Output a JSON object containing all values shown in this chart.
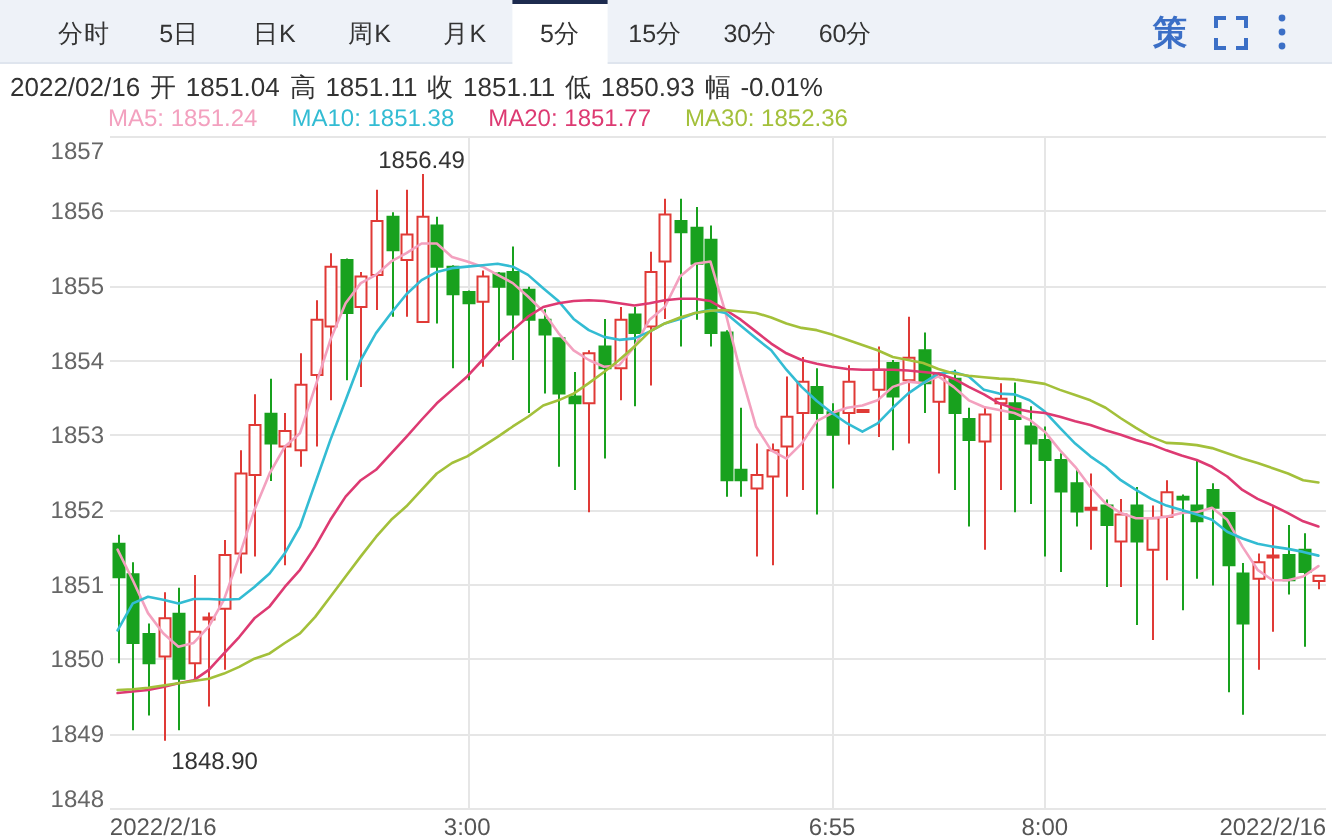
{
  "chart_data": {
    "type": "candlestick",
    "title": "2022/02/16 开 1851.04 高 1851.11 收 1851.11 低 1850.93 幅 -0.01%",
    "categories": [
      null,
      null,
      null,
      "2022/2/16",
      null,
      null,
      null,
      null,
      null,
      null,
      null,
      null,
      null,
      null,
      null,
      null,
      null,
      null,
      null,
      null,
      null,
      null,
      null,
      "3:00",
      null,
      null,
      null,
      null,
      null,
      null,
      null,
      null,
      null,
      null,
      null,
      null,
      null,
      null,
      null,
      null,
      null,
      null,
      null,
      null,
      null,
      null,
      null,
      "6:55",
      null,
      null,
      null,
      null,
      null,
      null,
      null,
      null,
      null,
      null,
      null,
      null,
      null,
      "8:00",
      null,
      null,
      null,
      null,
      null,
      null,
      null,
      null,
      null,
      null,
      null,
      null,
      null,
      null,
      "2022/2/16",
      null,
      null,
      null
    ],
    "ohlc": [
      [
        1851.54,
        1851.66,
        1849.94,
        1851.09
      ],
      [
        1851.13,
        1851.29,
        1849.04,
        1850.21
      ],
      [
        1850.33,
        1850.47,
        1849.24,
        1849.94
      ],
      [
        1850.03,
        1850.89,
        1848.9,
        1850.54
      ],
      [
        1850.6,
        1850.95,
        1849.04,
        1849.73
      ],
      [
        1849.94,
        1851.12,
        1849.71,
        1850.36
      ],
      [
        1850.53,
        1850.62,
        1849.36,
        1850.55
      ],
      [
        1850.67,
        1851.59,
        1849.85,
        1851.39
      ],
      [
        1851.41,
        1852.79,
        1851.14,
        1852.48
      ],
      [
        1852.46,
        1853.54,
        1851.37,
        1853.13
      ],
      [
        1853.28,
        1853.75,
        1852.38,
        1852.88
      ],
      [
        1852.84,
        1853.29,
        1851.25,
        1853.05
      ],
      [
        1852.79,
        1854.09,
        1852.57,
        1853.67
      ],
      [
        1853.8,
        1854.8,
        1852.84,
        1854.54
      ],
      [
        1854.45,
        1855.43,
        1853.46,
        1855.25
      ],
      [
        1855.34,
        1855.36,
        1853.73,
        1854.63
      ],
      [
        1854.71,
        1855.18,
        1853.64,
        1855.12
      ],
      [
        1855.14,
        1856.28,
        1854.67,
        1855.86
      ],
      [
        1855.92,
        1855.98,
        1854.58,
        1855.47
      ],
      [
        1855.34,
        1856.28,
        1854.58,
        1855.68
      ],
      [
        1854.51,
        1856.49,
        1854.5,
        1855.92
      ],
      [
        1855.8,
        1855.92,
        1854.49,
        1855.25
      ],
      [
        1855.25,
        1855.27,
        1853.89,
        1854.88
      ],
      [
        1854.91,
        1854.93,
        1853.73,
        1854.76
      ],
      [
        1854.78,
        1855.2,
        1853.91,
        1855.12
      ],
      [
        1855.16,
        1855.18,
        1854.18,
        1854.98
      ],
      [
        1855.18,
        1855.52,
        1854.0,
        1854.61
      ],
      [
        1854.94,
        1854.98,
        1853.29,
        1854.54
      ],
      [
        1854.54,
        1854.68,
        1853.55,
        1854.34
      ],
      [
        1854.29,
        1854.3,
        1852.57,
        1853.55
      ],
      [
        1853.51,
        1853.84,
        1852.26,
        1853.42
      ],
      [
        1853.42,
        1854.13,
        1851.96,
        1854.09
      ],
      [
        1854.18,
        1854.55,
        1852.68,
        1853.89
      ],
      [
        1853.89,
        1854.71,
        1853.46,
        1854.54
      ],
      [
        1854.61,
        1854.71,
        1853.38,
        1854.36
      ],
      [
        1854.45,
        1855.45,
        1853.66,
        1855.18
      ],
      [
        1855.32,
        1856.16,
        1854.55,
        1855.95
      ],
      [
        1855.86,
        1856.16,
        1854.18,
        1855.71
      ],
      [
        1855.77,
        1856.05,
        1854.54,
        1855.29
      ],
      [
        1855.61,
        1855.8,
        1854.18,
        1854.36
      ],
      [
        1854.37,
        1854.4,
        1852.17,
        1852.39
      ],
      [
        1852.53,
        1853.36,
        1852.17,
        1852.39
      ],
      [
        1852.28,
        1852.88,
        1851.37,
        1852.46
      ],
      [
        1852.44,
        1852.88,
        1851.25,
        1852.79
      ],
      [
        1852.84,
        1853.78,
        1852.17,
        1853.24
      ],
      [
        1853.29,
        1854.04,
        1852.26,
        1853.71
      ],
      [
        1853.64,
        1853.89,
        1851.93,
        1853.29
      ],
      [
        1853.3,
        1853.42,
        1852.28,
        1853.0
      ],
      [
        1853.29,
        1853.93,
        1852.87,
        1853.71
      ],
      [
        1853.31,
        1853.33,
        1853.31,
        1853.33
      ],
      [
        1853.6,
        1854.18,
        1852.97,
        1853.87
      ],
      [
        1853.96,
        1854.0,
        1852.79,
        1853.51
      ],
      [
        1853.73,
        1854.58,
        1852.88,
        1854.03
      ],
      [
        1854.13,
        1854.37,
        1853.29,
        1853.69
      ],
      [
        1853.44,
        1853.84,
        1852.48,
        1853.8
      ],
      [
        1853.75,
        1853.87,
        1852.26,
        1853.29
      ],
      [
        1853.21,
        1853.36,
        1851.77,
        1852.93
      ],
      [
        1852.91,
        1853.38,
        1851.46,
        1853.27
      ],
      [
        1853.42,
        1853.69,
        1852.26,
        1853.48
      ],
      [
        1853.42,
        1853.7,
        1851.96,
        1853.21
      ],
      [
        1853.11,
        1853.38,
        1852.07,
        1852.88
      ],
      [
        1852.93,
        1853.11,
        1851.37,
        1852.66
      ],
      [
        1852.66,
        1852.75,
        1851.16,
        1852.24
      ],
      [
        1852.35,
        1852.55,
        1851.77,
        1851.97
      ],
      [
        1852.0,
        1852.48,
        1851.46,
        1852.02
      ],
      [
        1852.05,
        1852.13,
        1850.96,
        1851.79
      ],
      [
        1851.57,
        1852.14,
        1850.96,
        1851.93
      ],
      [
        1852.05,
        1852.3,
        1850.45,
        1851.57
      ],
      [
        1851.46,
        1852.05,
        1850.25,
        1851.88
      ],
      [
        1851.9,
        1852.39,
        1851.05,
        1852.23
      ],
      [
        1852.17,
        1852.2,
        1850.65,
        1852.13
      ],
      [
        1852.05,
        1852.66,
        1851.07,
        1851.84
      ],
      [
        1852.26,
        1852.35,
        1850.98,
        1852.02
      ],
      [
        1851.95,
        1851.96,
        1849.55,
        1851.25
      ],
      [
        1851.14,
        1851.28,
        1849.25,
        1850.47
      ],
      [
        1851.07,
        1851.41,
        1849.85,
        1851.29
      ],
      [
        1851.36,
        1852.05,
        1850.36,
        1851.38
      ],
      [
        1851.39,
        1851.79,
        1850.86,
        1851.05
      ],
      [
        1851.46,
        1851.68,
        1850.16,
        1851.16
      ],
      [
        1851.04,
        1851.11,
        1850.93,
        1851.11
      ]
    ],
    "colors": [
      "#18a11e",
      "#18a11e",
      "#18a11e",
      "#e03a36",
      "#18a11e",
      "#e03a36",
      "#e03a36",
      "#e03a36",
      "#e03a36",
      "#e03a36",
      "#18a11e",
      "#e03a36",
      "#e03a36",
      "#e03a36",
      "#e03a36",
      "#18a11e",
      "#e03a36",
      "#e03a36",
      "#18a11e",
      "#e03a36",
      "#e03a36",
      "#18a11e",
      "#18a11e",
      "#18a11e",
      "#e03a36",
      "#18a11e",
      "#18a11e",
      "#18a11e",
      "#18a11e",
      "#18a11e",
      "#18a11e",
      "#e03a36",
      "#18a11e",
      "#e03a36",
      "#18a11e",
      "#e03a36",
      "#e03a36",
      "#18a11e",
      "#18a11e",
      "#18a11e",
      "#18a11e",
      "#18a11e",
      "#e03a36",
      "#e03a36",
      "#e03a36",
      "#e03a36",
      "#18a11e",
      "#18a11e",
      "#e03a36",
      "#e03a36",
      "#e03a36",
      "#18a11e",
      "#e03a36",
      "#18a11e",
      "#e03a36",
      "#18a11e",
      "#18a11e",
      "#e03a36",
      "#e03a36",
      "#18a11e",
      "#18a11e",
      "#18a11e",
      "#18a11e",
      "#18a11e",
      "#e03a36",
      "#18a11e",
      "#e03a36",
      "#18a11e",
      "#e03a36",
      "#e03a36",
      "#18a11e",
      "#18a11e",
      "#18a11e",
      "#18a11e",
      "#18a11e",
      "#e03a36",
      "#e03a36",
      "#18a11e",
      "#18a11e",
      "#e03a36"
    ],
    "series": [
      {
        "name": "MA5: 1851.24",
        "type": "line",
        "color": "#f3a1bf",
        "values": [
          1851.46,
          1851.05,
          1850.61,
          1850.34,
          1850.16,
          1850.21,
          1850.43,
          1850.79,
          1851.37,
          1851.99,
          1852.48,
          1852.84,
          1853.02,
          1853.64,
          1854.27,
          1854.76,
          1855.03,
          1855.14,
          1855.32,
          1855.43,
          1855.56,
          1855.56,
          1855.38,
          1855.32,
          1855.25,
          1855.14,
          1855.03,
          1854.85,
          1854.65,
          1854.36,
          1854.13,
          1854.0,
          1853.91,
          1853.93,
          1854.18,
          1854.54,
          1854.71,
          1855.12,
          1855.29,
          1855.32,
          1854.63,
          1853.82,
          1853.11,
          1852.79,
          1852.68,
          1852.88,
          1853.18,
          1853.29,
          1853.36,
          1853.39,
          1853.46,
          1853.64,
          1853.71,
          1853.69,
          1853.78,
          1853.64,
          1853.46,
          1853.37,
          1853.33,
          1853.29,
          1853.2,
          1853.04,
          1852.79,
          1852.57,
          1852.3,
          1852.08,
          1851.95,
          1851.88,
          1851.88,
          1851.9,
          1851.95,
          1851.96,
          1852.02,
          1851.86,
          1851.5,
          1851.19,
          1851.05,
          1851.05,
          1851.1,
          1851.24
        ]
      },
      {
        "name": "MA10: 1851.38",
        "type": "line",
        "color": "#33bcd3",
        "values": [
          1850.38,
          1850.74,
          1850.83,
          1850.79,
          1850.74,
          1850.8,
          1850.8,
          1850.79,
          1850.8,
          1850.96,
          1851.14,
          1851.41,
          1851.77,
          1852.35,
          1852.93,
          1853.46,
          1854.0,
          1854.36,
          1854.63,
          1854.88,
          1855.07,
          1855.18,
          1855.23,
          1855.25,
          1855.27,
          1855.29,
          1855.25,
          1855.14,
          1854.96,
          1854.79,
          1854.55,
          1854.4,
          1854.31,
          1854.27,
          1854.29,
          1854.38,
          1854.49,
          1854.55,
          1854.63,
          1854.67,
          1854.63,
          1854.46,
          1854.29,
          1854.13,
          1853.87,
          1853.64,
          1853.45,
          1853.29,
          1853.15,
          1853.04,
          1853.15,
          1853.36,
          1853.55,
          1853.69,
          1853.82,
          1853.84,
          1853.78,
          1853.6,
          1853.55,
          1853.54,
          1853.46,
          1853.31,
          1853.09,
          1852.88,
          1852.71,
          1852.57,
          1852.39,
          1852.26,
          1852.14,
          1852.05,
          1851.99,
          1851.93,
          1851.86,
          1851.7,
          1851.61,
          1851.54,
          1851.5,
          1851.47,
          1851.43,
          1851.38
        ]
      },
      {
        "name": "MA20: 1851.77",
        "type": "line",
        "color": "#dd3a72",
        "values": [
          1849.54,
          1849.56,
          1849.58,
          1849.62,
          1849.67,
          1849.71,
          1849.85,
          1850.07,
          1850.29,
          1850.54,
          1850.7,
          1850.96,
          1851.19,
          1851.5,
          1851.86,
          1852.17,
          1852.39,
          1852.53,
          1852.75,
          1852.97,
          1853.2,
          1853.42,
          1853.6,
          1853.78,
          1854.0,
          1854.22,
          1854.4,
          1854.58,
          1854.71,
          1854.76,
          1854.79,
          1854.8,
          1854.79,
          1854.76,
          1854.73,
          1854.76,
          1854.8,
          1854.82,
          1854.82,
          1854.79,
          1854.67,
          1854.54,
          1854.38,
          1854.22,
          1854.09,
          1854.0,
          1853.95,
          1853.91,
          1853.88,
          1853.87,
          1853.87,
          1853.87,
          1853.86,
          1853.84,
          1853.82,
          1853.75,
          1853.64,
          1853.54,
          1853.42,
          1853.35,
          1853.31,
          1853.29,
          1853.24,
          1853.18,
          1853.13,
          1853.06,
          1853.0,
          1852.93,
          1852.87,
          1852.79,
          1852.72,
          1852.66,
          1852.57,
          1852.44,
          1852.26,
          1852.14,
          1852.05,
          1851.95,
          1851.84,
          1851.77
        ]
      },
      {
        "name": "MA30: 1852.36",
        "type": "line",
        "color": "#a3c03a",
        "values": [
          1849.58,
          1849.59,
          1849.61,
          1849.64,
          1849.67,
          1849.7,
          1849.73,
          1849.8,
          1849.89,
          1850.0,
          1850.07,
          1850.21,
          1850.34,
          1850.56,
          1850.83,
          1851.1,
          1851.37,
          1851.63,
          1851.86,
          1852.04,
          1852.26,
          1852.48,
          1852.62,
          1852.71,
          1852.84,
          1852.97,
          1853.11,
          1853.24,
          1853.39,
          1853.46,
          1853.55,
          1853.69,
          1853.84,
          1854.0,
          1854.18,
          1854.38,
          1854.49,
          1854.57,
          1854.63,
          1854.66,
          1854.67,
          1854.65,
          1854.63,
          1854.57,
          1854.49,
          1854.43,
          1854.4,
          1854.34,
          1854.27,
          1854.2,
          1854.13,
          1854.04,
          1854.0,
          1853.96,
          1853.88,
          1853.82,
          1853.79,
          1853.77,
          1853.75,
          1853.74,
          1853.71,
          1853.68,
          1853.6,
          1853.53,
          1853.46,
          1853.36,
          1853.22,
          1853.09,
          1852.97,
          1852.89,
          1852.88,
          1852.86,
          1852.82,
          1852.75,
          1852.68,
          1852.62,
          1852.55,
          1852.48,
          1852.39,
          1852.36
        ]
      }
    ],
    "ylim": [
      1848,
      1857
    ],
    "yticks": [
      1848,
      1849,
      1850,
      1851,
      1852,
      1853,
      1854,
      1855,
      1856,
      1857
    ],
    "grid": true,
    "legend": "top left",
    "annotations": [
      "分时",
      "5日",
      "日K",
      "周K",
      "月K",
      "5分",
      "15分",
      "30分",
      "60分",
      "策",
      "1848.90",
      {
        "text": "1856.49",
        "y": 1856.49
      }
    ]
  }
}
